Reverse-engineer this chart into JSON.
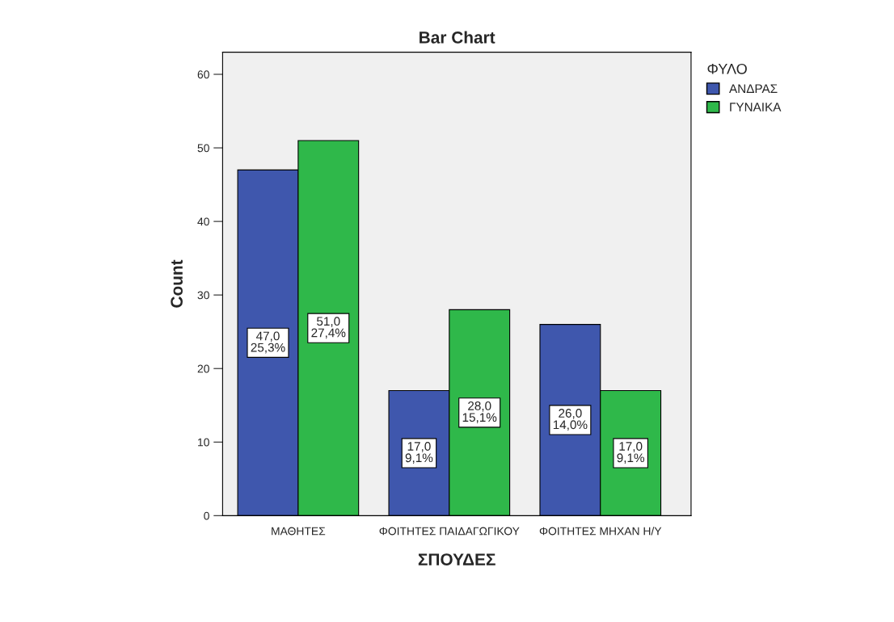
{
  "chart_data": {
    "type": "bar",
    "title": "Bar Chart",
    "xlabel": "ΣΠΟΥΔΕΣ",
    "ylabel": "Count",
    "legend_title": "ΦΥΛΟ",
    "categories": [
      "ΜΑΘΗΤΕΣ",
      "ΦΟΙΤΗΤΕΣ ΠΑΙΔΑΓΩΓΙΚΟΥ",
      "ΦΟΙΤΗΤΕΣ ΜΗΧΑΝ Η/Υ"
    ],
    "series": [
      {
        "name": "ΑΝΔΡΑΣ",
        "color": "#3f57ad",
        "values": [
          47,
          17,
          26
        ],
        "value_labels": [
          "47,0\n25,3%",
          "17,0\n9,1%",
          "26,0\n14,0%"
        ]
      },
      {
        "name": "ΓΥΝΑΙΚΑ",
        "color": "#2fb84a",
        "values": [
          51,
          28,
          17
        ],
        "value_labels": [
          "51,0\n27,4%",
          "28,0\n15,1%",
          "17,0\n9,1%"
        ]
      }
    ],
    "ylim": [
      0,
      63
    ],
    "yticks": [
      0,
      10,
      20,
      30,
      40,
      50,
      60
    ],
    "grid": false,
    "legend": "top right"
  }
}
